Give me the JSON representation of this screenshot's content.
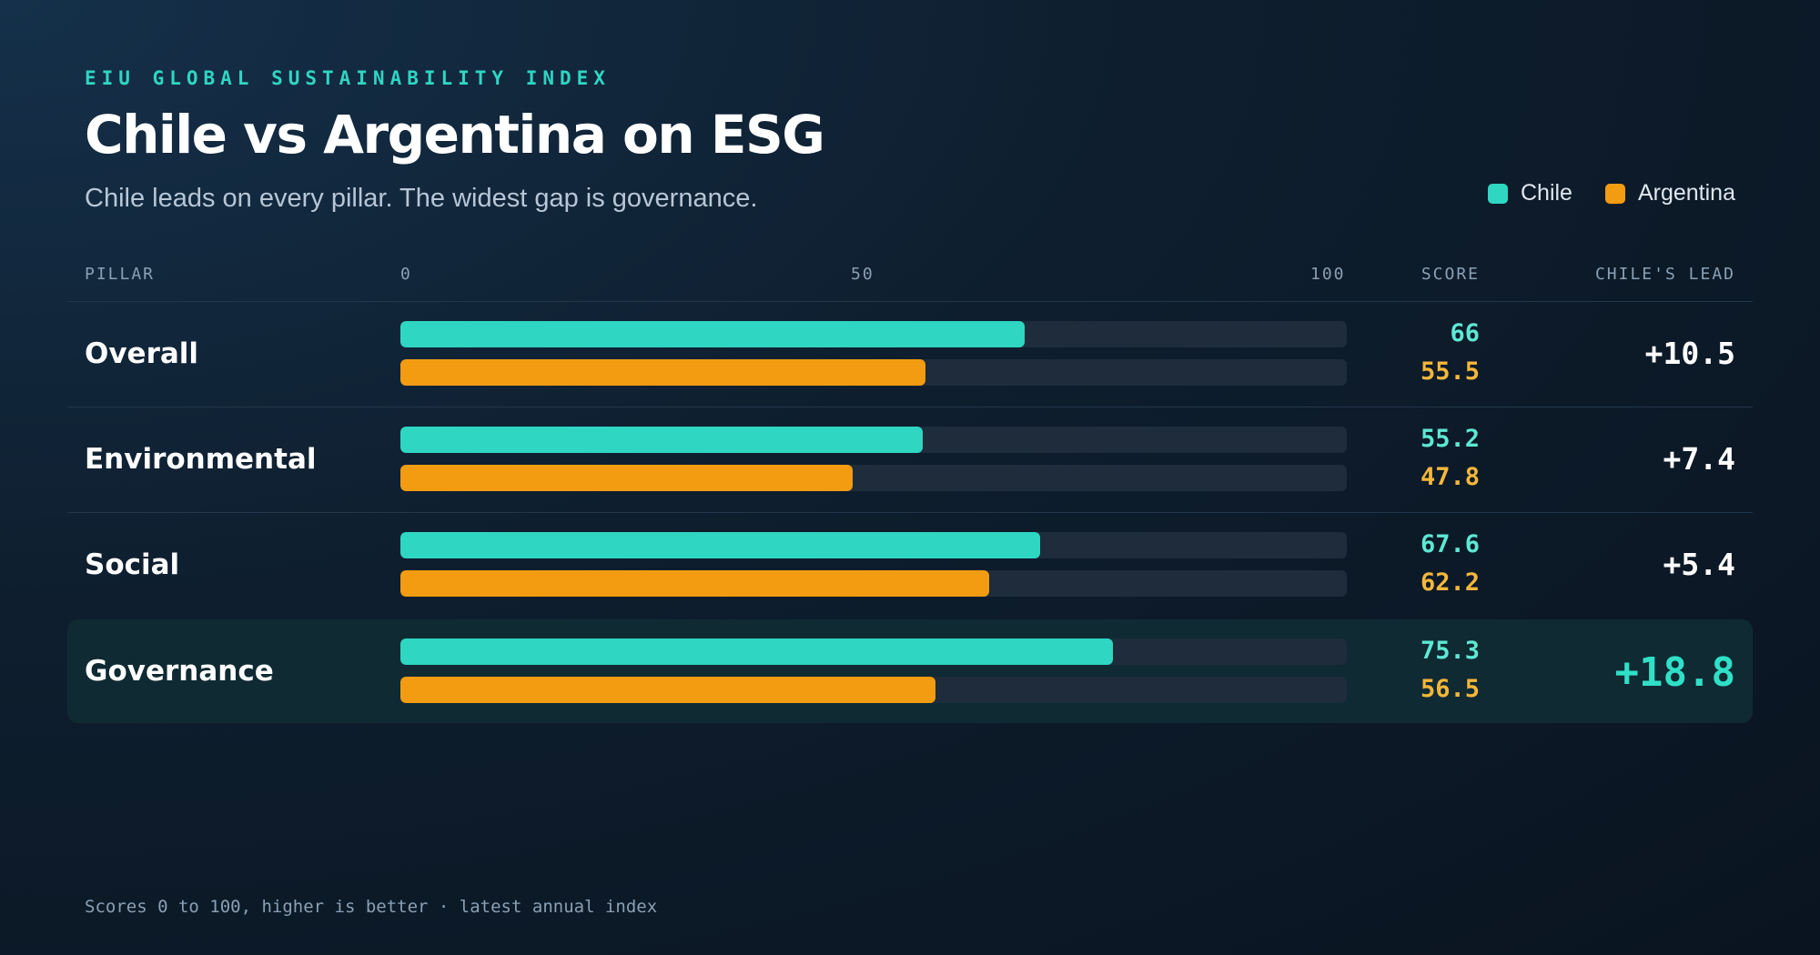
{
  "header": {
    "eyebrow": "EIU GLOBAL SUSTAINABILITY INDEX",
    "title": "Chile vs Argentina on ESG",
    "subtitle": "Chile leads on every pillar. The widest gap is governance."
  },
  "legend": [
    {
      "label": "Chile",
      "color": "#2fd6c2"
    },
    {
      "label": "Argentina",
      "color": "#f39c12"
    }
  ],
  "columns": {
    "pillar": "PILLAR",
    "score": "SCORE",
    "lead": "CHILE'S LEAD",
    "ticks": [
      "0",
      "50",
      "100"
    ]
  },
  "colors": {
    "chile": "#2fd6c2",
    "argentina": "#f39c12",
    "chile_text": "#5ee8d3",
    "argentina_text": "#f5b73a",
    "track": "#1e2c3b"
  },
  "chart_data": {
    "type": "bar",
    "orientation": "horizontal",
    "categories": [
      "Overall",
      "Environmental",
      "Social",
      "Governance"
    ],
    "series": [
      {
        "name": "Chile",
        "values": [
          66,
          55.2,
          67.6,
          75.3
        ]
      },
      {
        "name": "Argentina",
        "values": [
          55.5,
          47.8,
          62.2,
          56.5
        ]
      }
    ],
    "score_labels": {
      "Chile": [
        "66",
        "55.2",
        "67.6",
        "75.3"
      ],
      "Argentina": [
        "55.5",
        "47.8",
        "62.2",
        "56.5"
      ]
    },
    "lead_labels": [
      "+10.5",
      "+7.4",
      "+5.4",
      "+18.8"
    ],
    "highlighted_category": "Governance",
    "xlim": [
      0,
      100
    ],
    "legend_position": "top-right",
    "grid": false
  },
  "footnote": "Scores 0 to 100, higher is better · latest annual index"
}
